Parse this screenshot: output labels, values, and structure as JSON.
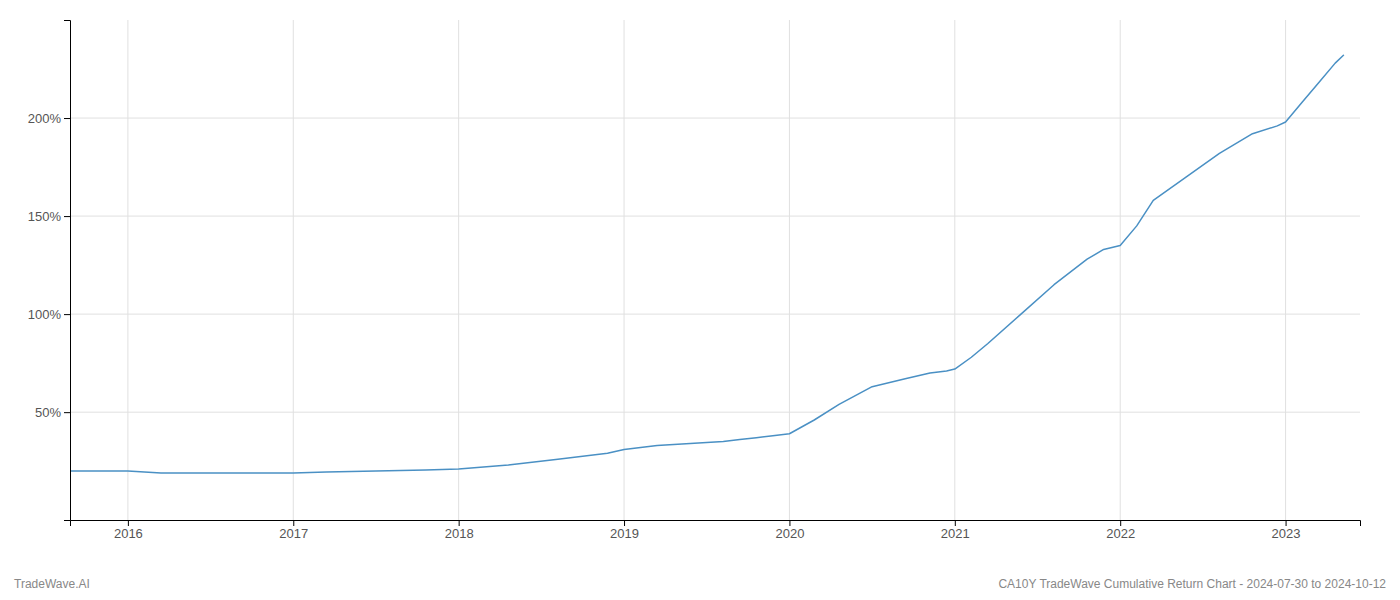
{
  "chart_data": {
    "type": "line",
    "title": "CA10Y TradeWave Cumulative Return Chart - 2024-07-30 to 2024-10-12",
    "annotations": [
      "TradeWave.AI"
    ],
    "x": [
      2015.65,
      2016.0,
      2016.2,
      2016.5,
      2016.8,
      2017.0,
      2017.2,
      2017.5,
      2017.8,
      2018.0,
      2018.3,
      2018.6,
      2018.9,
      2019.0,
      2019.1,
      2019.2,
      2019.4,
      2019.6,
      2019.7,
      2019.8,
      2019.9,
      2020.0,
      2020.15,
      2020.3,
      2020.5,
      2020.7,
      2020.85,
      2020.95,
      2021.0,
      2021.1,
      2021.2,
      2021.4,
      2021.6,
      2021.8,
      2021.9,
      2022.0,
      2022.1,
      2022.2,
      2022.4,
      2022.6,
      2022.8,
      2022.95,
      2023.0,
      2023.1,
      2023.2,
      2023.3,
      2023.35
    ],
    "values": [
      20,
      20,
      19,
      19,
      19,
      19,
      19.5,
      20,
      20.5,
      21,
      23,
      26,
      29,
      31,
      32,
      33,
      34,
      35,
      36,
      37,
      38,
      39,
      46,
      54,
      63,
      67,
      70,
      71,
      72,
      78,
      85,
      100,
      115,
      128,
      133,
      135,
      145,
      158,
      170,
      182,
      192,
      196,
      198,
      208,
      218,
      228,
      232
    ],
    "color": "#4a90c4",
    "xlim": [
      2015.65,
      2023.45
    ],
    "xticks": [
      2016,
      2017,
      2018,
      2019,
      2020,
      2021,
      2022,
      2023
    ],
    "ylim": [
      -5,
      250
    ],
    "yticks": [
      {
        "value": 50,
        "label": "50%"
      },
      {
        "value": 100,
        "label": "100%"
      },
      {
        "value": 150,
        "label": "150%"
      },
      {
        "value": 200,
        "label": "200%"
      }
    ],
    "grid": true
  }
}
